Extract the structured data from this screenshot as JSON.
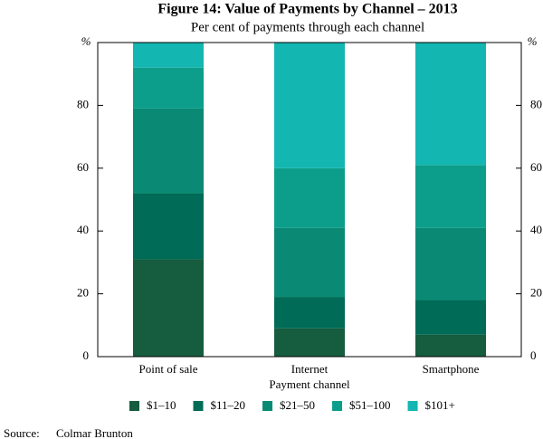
{
  "chart_data": {
    "type": "stacked_bar",
    "title": "Figure 14: Value of Payments by Channel – 2013",
    "subtitle": "Per cent of payments through each channel",
    "x_label": "Payment channel",
    "y_unit": "%",
    "categories": [
      "Point of sale",
      "Internet",
      "Smartphone"
    ],
    "series": [
      {
        "name": "$1–10",
        "color": "#165c3f",
        "values": [
          31,
          9,
          7
        ]
      },
      {
        "name": "$11–20",
        "color": "#006b56",
        "values": [
          21,
          10,
          11
        ]
      },
      {
        "name": "$21–50",
        "color": "#0a8a74",
        "values": [
          27,
          22,
          23
        ]
      },
      {
        "name": "$51–100",
        "color": "#0c9e8b",
        "values": [
          13,
          19,
          20
        ]
      },
      {
        "name": "$101+",
        "color": "#14b6b1",
        "values": [
          8,
          40,
          39
        ]
      }
    ],
    "ylim": [
      0,
      100
    ],
    "yticks": [
      0,
      20,
      40,
      60,
      80
    ],
    "y2lim": [
      0,
      100
    ],
    "y2ticks": [
      0,
      20,
      40,
      60,
      80
    ],
    "source_label": "Source:",
    "source": "Colmar Brunton"
  }
}
